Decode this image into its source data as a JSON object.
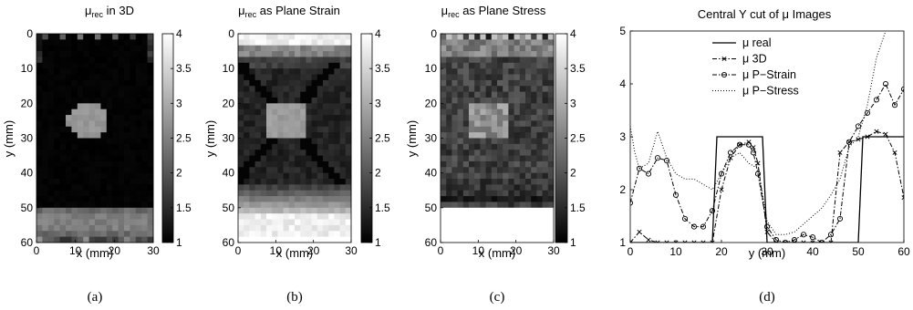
{
  "panels": [
    {
      "label": "(a)",
      "title_main": "μ",
      "title_sub": "rec",
      "title_rest": " in 3D",
      "xlabel": "x (mm)",
      "ylabel": "y (mm)",
      "x_ticks": [
        "0",
        "10",
        "20",
        "30"
      ],
      "y_ticks": [
        "0",
        "10",
        "20",
        "30",
        "40",
        "50",
        "60"
      ],
      "colorbar_ticks": [
        "4",
        "3.5",
        "3",
        "2.5",
        "2",
        "1.5",
        "1"
      ]
    },
    {
      "label": "(b)",
      "title_main": "μ",
      "title_sub": "rec",
      "title_rest": " as Plane Strain",
      "xlabel": "x (mm)",
      "ylabel": "y (mm)",
      "x_ticks": [
        "0",
        "10",
        "20",
        "30"
      ],
      "y_ticks": [
        "0",
        "10",
        "20",
        "30",
        "40",
        "50",
        "60"
      ],
      "colorbar_ticks": [
        "4",
        "3.5",
        "3",
        "2.5",
        "2",
        "1.5",
        "1"
      ]
    },
    {
      "label": "(c)",
      "title_main": "μ",
      "title_sub": "rec",
      "title_rest": " as Plane Stress",
      "xlabel": "x (mm)",
      "ylabel": "y (mm)",
      "x_ticks": [
        "0",
        "10",
        "20",
        "30"
      ],
      "y_ticks": [
        "0",
        "10",
        "20",
        "30",
        "40",
        "50",
        "60"
      ],
      "colorbar_ticks": [
        "4",
        "3.5",
        "3",
        "2.5",
        "2",
        "1.5",
        "1"
      ]
    }
  ],
  "line_panel": {
    "label": "(d)"
  },
  "chart_data": [
    {
      "type": "heatmap",
      "title": "μrec in 3D",
      "xlabel": "x (mm)",
      "ylabel": "y (mm)",
      "xlim": [
        0,
        30
      ],
      "ylim": [
        60,
        0
      ],
      "clim": [
        1,
        4
      ],
      "colormap": "gray",
      "description_values": {
        "background": 1.0,
        "inclusion_center": [
          13,
          25
        ],
        "inclusion_value": 2.8,
        "bottom_band_value": 2.2,
        "bottom_band_y": [
          50,
          58
        ]
      }
    },
    {
      "type": "heatmap",
      "title": "μrec as Plane Strain",
      "xlabel": "x (mm)",
      "ylabel": "y (mm)",
      "xlim": [
        0,
        30
      ],
      "ylim": [
        60,
        0
      ],
      "clim": [
        1,
        4
      ],
      "colormap": "gray",
      "description_values": {
        "background": 1.3,
        "inclusion_center": [
          13,
          25
        ],
        "inclusion_value": 2.8,
        "top_band_value": 3.6,
        "bottom_band_value": 3.6
      }
    },
    {
      "type": "heatmap",
      "title": "μrec as Plane Stress",
      "xlabel": "x (mm)",
      "ylabel": "y (mm)",
      "xlim": [
        0,
        30
      ],
      "ylim": [
        60,
        0
      ],
      "clim": [
        1,
        4
      ],
      "colormap": "gray",
      "description_values": {
        "background": 1.6,
        "inclusion_center": [
          13,
          25
        ],
        "inclusion_value": 2.7,
        "lower_band_value": 4.0,
        "lower_band_y": [
          49,
          60
        ]
      }
    },
    {
      "type": "line",
      "title": "Central Y cut of μ Images",
      "xlabel": "y (mm)",
      "ylabel": "",
      "xlim": [
        0,
        60
      ],
      "ylim": [
        1,
        5
      ],
      "x_ticks": [
        "0",
        "10",
        "20",
        "30",
        "40",
        "50",
        "60"
      ],
      "y_ticks": [
        "1",
        "2",
        "3",
        "4",
        "5"
      ],
      "legend_position": "top-right",
      "series": [
        {
          "name": "μ real",
          "style": "solid",
          "x": [
            0,
            18,
            19,
            29,
            30,
            50,
            51,
            60
          ],
          "y": [
            1,
            1,
            3,
            3,
            1,
            1,
            3,
            3
          ]
        },
        {
          "name": "μ 3D",
          "style": "dashdot",
          "marker": "x",
          "x": [
            0,
            2,
            4,
            6,
            8,
            10,
            12,
            14,
            16,
            18,
            20,
            22,
            24,
            26,
            27,
            28,
            30,
            32,
            34,
            36,
            38,
            40,
            42,
            44,
            46,
            48,
            50,
            52,
            54,
            56,
            58,
            60
          ],
          "y": [
            1.0,
            1.2,
            1.05,
            1.0,
            1.0,
            1.0,
            1.0,
            1.0,
            1.0,
            1.0,
            2.0,
            2.6,
            2.85,
            2.9,
            2.8,
            2.5,
            1.2,
            1.0,
            1.0,
            1.0,
            1.0,
            1.0,
            1.0,
            1.0,
            2.7,
            2.9,
            2.95,
            3.0,
            3.1,
            3.05,
            2.7,
            1.85
          ]
        },
        {
          "name": "μ P−Strain",
          "style": "dashdot",
          "marker": "o",
          "x": [
            0,
            2,
            4,
            6,
            8,
            10,
            12,
            14,
            16,
            18,
            20,
            22,
            24,
            26,
            27,
            28,
            30,
            32,
            34,
            36,
            38,
            40,
            42,
            44,
            46,
            48,
            50,
            52,
            54,
            56,
            58,
            60
          ],
          "y": [
            1.75,
            2.4,
            2.3,
            2.6,
            2.55,
            1.9,
            1.45,
            1.3,
            1.3,
            1.6,
            2.3,
            2.7,
            2.85,
            2.85,
            2.7,
            2.3,
            1.3,
            1.05,
            1.0,
            1.05,
            1.15,
            1.1,
            1.0,
            1.15,
            1.45,
            2.9,
            3.2,
            3.45,
            3.7,
            4.0,
            3.6,
            3.9
          ]
        },
        {
          "name": "μ P−Stress",
          "style": "dotted",
          "x": [
            0,
            1,
            2,
            4,
            6,
            8,
            10,
            12,
            14,
            16,
            18,
            20,
            22,
            24,
            26,
            28,
            30,
            32,
            34,
            36,
            38,
            40,
            42,
            44,
            46,
            48,
            50,
            52,
            54,
            56
          ],
          "y": [
            3.2,
            2.7,
            2.4,
            2.5,
            3.1,
            2.6,
            2.3,
            2.2,
            2.2,
            2.1,
            2.0,
            2.3,
            2.6,
            2.7,
            2.5,
            2.4,
            1.4,
            1.15,
            1.15,
            1.2,
            1.35,
            1.5,
            1.65,
            1.9,
            2.2,
            2.8,
            3.0,
            3.6,
            4.5,
            5.0
          ]
        }
      ]
    }
  ]
}
